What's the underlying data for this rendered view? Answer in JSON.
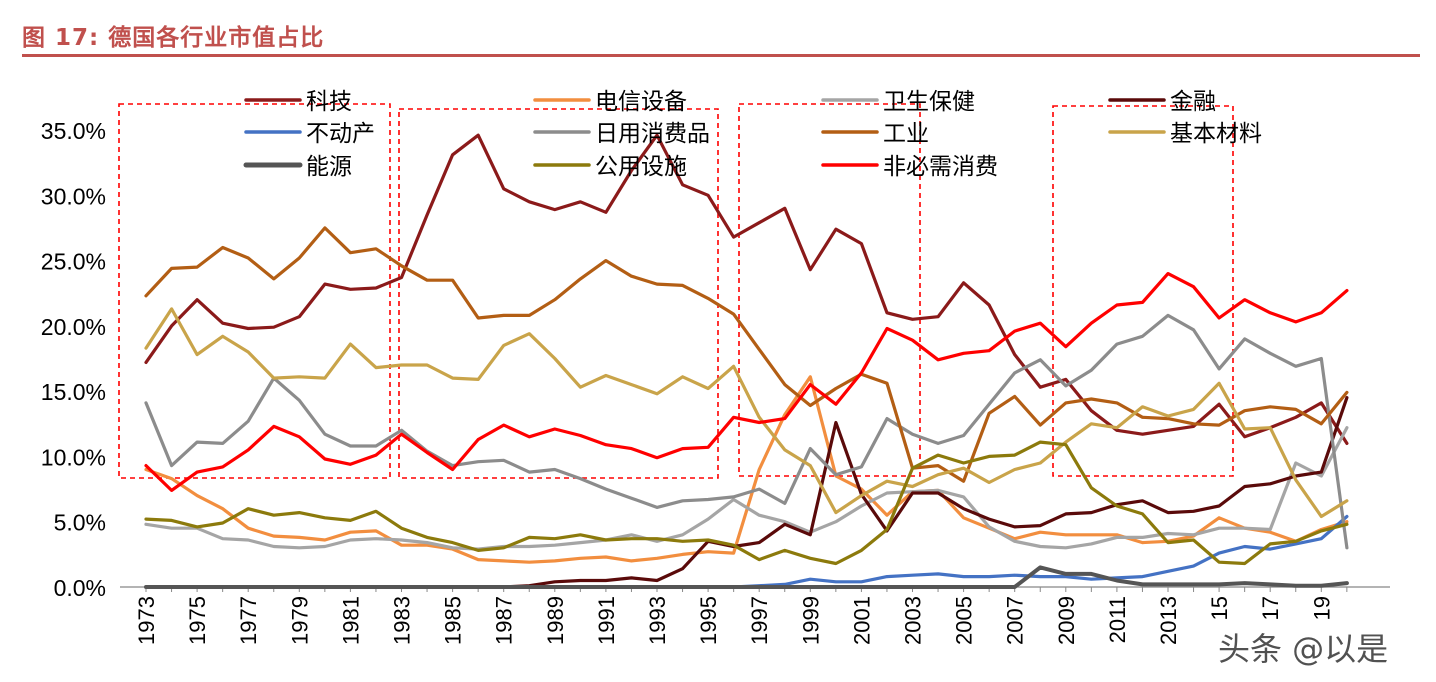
{
  "figure": {
    "title": "图 17:  德国各行业市值占比",
    "watermark": "头条 @以是"
  },
  "chart_data": {
    "type": "line",
    "x": [
      1973,
      1974,
      1975,
      1976,
      1977,
      1978,
      1979,
      1980,
      1981,
      1982,
      1983,
      1984,
      1985,
      1986,
      1987,
      1988,
      1989,
      1990,
      1991,
      1992,
      1993,
      1994,
      1995,
      1996,
      1997,
      1998,
      1999,
      2000,
      2001,
      2002,
      2003,
      2004,
      2005,
      2006,
      2007,
      2008,
      2009,
      2010,
      2011,
      2012,
      2013,
      2014,
      2015,
      2016,
      2017,
      2018,
      2019,
      2020
    ],
    "x_tick_labels": [
      "1973",
      "1975",
      "1977",
      "1979",
      "1981",
      "1983",
      "1985",
      "1987",
      "1989",
      "1991",
      "1993",
      "1995",
      "1997",
      "1999",
      "2001",
      "2003",
      "2005",
      "2007",
      "2009",
      "2011",
      "2013",
      "15",
      "17",
      "19"
    ],
    "y_tick_labels": [
      "0.0%",
      "5.0%",
      "10.0%",
      "15.0%",
      "20.0%",
      "25.0%",
      "30.0%",
      "35.0%"
    ],
    "ylim": [
      0,
      35
    ],
    "y_unit": "%",
    "legend_placement": "top",
    "series": [
      {
        "name": "科技",
        "color": "#8b1a1a",
        "values": [
          17.2,
          20,
          22,
          20.2,
          19.8,
          19.9,
          20.7,
          23.2,
          22.8,
          22.9,
          23.7,
          28.5,
          33.1,
          34.6,
          30.5,
          29.5,
          28.9,
          29.5,
          28.7,
          31.9,
          34.6,
          30.8,
          30,
          26.8,
          27.9,
          29,
          24.3,
          27.4,
          26.3,
          21,
          20.5,
          20.7,
          23.3,
          21.6,
          17.8,
          15.3,
          15.9,
          13.5,
          12,
          11.7,
          12,
          12.3,
          14,
          11.5,
          12.2,
          13,
          14.1,
          11
        ]
      },
      {
        "name": "电信设备",
        "color": "#f28e3f",
        "values": [
          9,
          8.3,
          7,
          6,
          4.5,
          3.9,
          3.8,
          3.6,
          4.2,
          4.3,
          3.2,
          3.2,
          2.9,
          2.1,
          2.0,
          1.9,
          2.0,
          2.2,
          2.3,
          2.0,
          2.2,
          2.5,
          2.7,
          2.6,
          9,
          13.2,
          16.1,
          8.5,
          7.5,
          5.5,
          7.3,
          7.4,
          5.3,
          4.5,
          3.7,
          4.2,
          4.0,
          4.0,
          4.0,
          3.4,
          3.5,
          3.9,
          5.3,
          4.5,
          4.2,
          3.5,
          4.4,
          5
        ]
      },
      {
        "name": "卫生保健",
        "color": "#a5a5a5",
        "values": [
          4.8,
          4.5,
          4.5,
          3.7,
          3.6,
          3.1,
          3,
          3.1,
          3.6,
          3.7,
          3.6,
          3.4,
          3,
          2.9,
          3.1,
          3.1,
          3.2,
          3.4,
          3.6,
          4.0,
          3.5,
          4,
          5.2,
          6.7,
          5.5,
          5,
          4.2,
          5,
          6.2,
          7.2,
          7.3,
          7.4,
          6.9,
          4.6,
          3.5,
          3.1,
          3.0,
          3.3,
          3.8,
          3.8,
          4.1,
          4.0,
          4.5,
          4.5,
          4.4,
          9.5,
          8.5,
          12.2
        ]
      },
      {
        "name": "金融",
        "color": "#5a0a0a",
        "values": [
          0,
          0,
          0,
          0,
          0,
          0,
          0,
          0,
          0,
          0,
          0,
          0,
          0,
          0,
          0,
          0.1,
          0.4,
          0.5,
          0.5,
          0.7,
          0.5,
          1.4,
          3.5,
          3.1,
          3.4,
          4.8,
          4.0,
          12.6,
          7.1,
          4.3,
          7.2,
          7.2,
          6.0,
          5.2,
          4.6,
          4.7,
          5.6,
          5.7,
          6.3,
          6.6,
          5.7,
          5.8,
          6.2,
          7.7,
          7.9,
          8.5,
          8.8,
          14.5
        ]
      },
      {
        "name": "不动产",
        "color": "#4472c4",
        "values": [
          0,
          0,
          0,
          0,
          0,
          0,
          0,
          0,
          0,
          0,
          0,
          0,
          0,
          0,
          0,
          0,
          0,
          0,
          0,
          0,
          0,
          0,
          0,
          0,
          0.1,
          0.2,
          0.6,
          0.4,
          0.4,
          0.8,
          0.9,
          1.0,
          0.8,
          0.8,
          0.9,
          0.8,
          0.8,
          0.6,
          0.7,
          0.8,
          1.2,
          1.6,
          2.6,
          3.1,
          2.9,
          3.3,
          3.7,
          5.4
        ]
      },
      {
        "name": "日用消费品",
        "color": "#8c8c8c",
        "values": [
          14.1,
          9.3,
          11.1,
          11,
          12.7,
          16,
          14.3,
          11.7,
          10.8,
          10.8,
          12,
          10.4,
          9.3,
          9.6,
          9.7,
          8.8,
          9,
          8.3,
          7.5,
          6.8,
          6.1,
          6.6,
          6.7,
          6.9,
          7.5,
          6.4,
          10.6,
          8.6,
          9.2,
          12.9,
          11.7,
          11,
          11.6,
          14,
          16.4,
          17.4,
          15.4,
          16.6,
          18.6,
          19.2,
          20.8,
          19.7,
          16.7,
          19,
          17.9,
          16.9,
          17.5,
          3
        ]
      },
      {
        "name": "工业",
        "color": "#b35e14",
        "values": [
          22.3,
          24.4,
          24.5,
          26,
          25.2,
          23.6,
          25.2,
          27.5,
          25.6,
          25.9,
          24.6,
          23.5,
          23.5,
          20.6,
          20.8,
          20.8,
          22,
          23.6,
          25,
          23.8,
          23.2,
          23.1,
          22.1,
          20.9,
          18.2,
          15.5,
          13.9,
          15.2,
          16.3,
          15.6,
          9.1,
          9.3,
          8.1,
          13.3,
          14.6,
          12.4,
          14.1,
          14.4,
          14.1,
          13,
          12.9,
          12.5,
          12.4,
          13.5,
          13.8,
          13.6,
          12.5,
          14.9
        ]
      },
      {
        "name": "基本材料",
        "color": "#c9a44a",
        "values": [
          18.3,
          21.3,
          17.8,
          19.2,
          18,
          16,
          16.1,
          16,
          18.6,
          16.8,
          17,
          17,
          16,
          15.9,
          18.5,
          19.4,
          17.5,
          15.3,
          16.2,
          15.5,
          14.8,
          16.1,
          15.2,
          16.9,
          13,
          10.5,
          9.3,
          5.7,
          7.0,
          8.1,
          7.7,
          8.6,
          9.1,
          8.0,
          9.0,
          9.5,
          11.1,
          12.5,
          12.2,
          13.8,
          13.1,
          13.6,
          15.6,
          12.1,
          12.2,
          8.2,
          5.4,
          6.6
        ]
      },
      {
        "name": "能源",
        "color": "#555555",
        "values": [
          0,
          0,
          0,
          0,
          0,
          0,
          0,
          0,
          0,
          0,
          0,
          0,
          0,
          0,
          0,
          0,
          0,
          0,
          0,
          0,
          0,
          0,
          0,
          0,
          0,
          0,
          0,
          0,
          0,
          0,
          0,
          0,
          0,
          0,
          0,
          1.5,
          1.0,
          1.0,
          0.5,
          0.2,
          0.2,
          0.2,
          0.2,
          0.3,
          0.2,
          0.1,
          0.1,
          0.3
        ]
      },
      {
        "name": "公用设施",
        "color": "#8c7a0c",
        "values": [
          5.2,
          5.1,
          4.6,
          4.9,
          6,
          5.5,
          5.7,
          5.3,
          5.1,
          5.8,
          4.5,
          3.8,
          3.4,
          2.8,
          3.0,
          3.8,
          3.7,
          4.0,
          3.6,
          3.7,
          3.7,
          3.5,
          3.6,
          3.2,
          2.1,
          2.8,
          2.2,
          1.8,
          2.8,
          4.4,
          9.1,
          10.1,
          9.5,
          10.0,
          10.1,
          11.1,
          10.9,
          7.6,
          6.2,
          5.6,
          3.4,
          3.6,
          1.9,
          1.8,
          3.3,
          3.5,
          4.3,
          4.8
        ]
      },
      {
        "name": "非必需消费",
        "color": "#ff0000",
        "values": [
          9.3,
          7.4,
          8.8,
          9.2,
          10.5,
          12.3,
          11.5,
          9.8,
          9.4,
          10.1,
          11.7,
          10.3,
          9,
          11.3,
          12.4,
          11.5,
          12.1,
          11.6,
          10.9,
          10.6,
          9.9,
          10.6,
          10.7,
          13,
          12.6,
          12.9,
          15.5,
          14,
          16.4,
          19.8,
          18.9,
          17.4,
          17.9,
          18.1,
          19.6,
          20.2,
          18.4,
          20.2,
          21.6,
          21.8,
          24,
          23,
          20.6,
          22,
          21,
          20.3,
          21,
          22.7
        ]
      }
    ]
  }
}
